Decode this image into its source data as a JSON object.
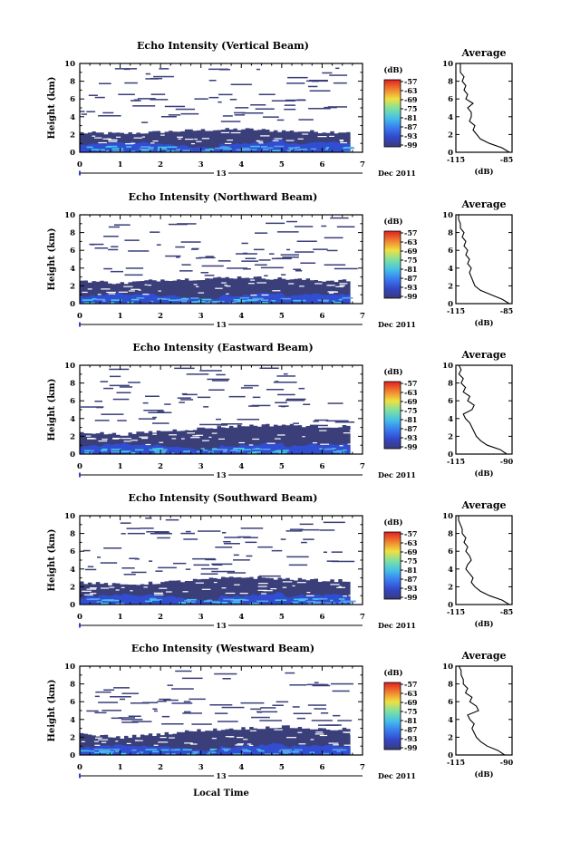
{
  "figure": {
    "x_axis_label": "Local Time",
    "date_label": "Dec 2011",
    "day_label": "13"
  },
  "colors": {
    "background": "#ffffff",
    "dark_navy": "#3a3f7a",
    "blue": "#3050e0",
    "cyan": "#40c8e8",
    "colormap": [
      "#3a3a78",
      "#3347c8",
      "#3a7cf0",
      "#45c0e8",
      "#80e0a0",
      "#f0e040",
      "#f08030",
      "#e02020"
    ]
  },
  "chart_data": [
    {
      "type": "heatmap",
      "title": "Echo Intensity (Vertical Beam)",
      "ylabel": "Height (km)",
      "xlim": [
        0,
        7
      ],
      "ylim": [
        0,
        10
      ],
      "xticks": [
        "0",
        "1",
        "2",
        "3",
        "4",
        "5",
        "6",
        "7"
      ],
      "yticks": [
        "0",
        "2",
        "4",
        "6",
        "8",
        "10"
      ],
      "colorbar": {
        "unit": "(dB)",
        "ticks": [
          "-57",
          "-63",
          "-69",
          "-75",
          "-81",
          "-87",
          "-93",
          "-99"
        ]
      },
      "layer_top_km": [
        [
          0,
          2.2
        ],
        [
          1,
          2.1
        ],
        [
          2,
          2.3
        ],
        [
          3,
          2.5
        ],
        [
          4,
          2.6
        ],
        [
          5,
          2.4
        ],
        [
          6,
          2.3
        ],
        [
          6.7,
          2.3
        ]
      ],
      "profile": {
        "title": "Average",
        "xlabel": "(dB)",
        "xticks": [
          "-115",
          "-85"
        ],
        "yticks": [
          "0",
          "2",
          "4",
          "6",
          "8",
          "10"
        ],
        "height_km": [
          0,
          0.5,
          1,
          1.5,
          2,
          2.5,
          3,
          3.5,
          4,
          4.5,
          5,
          5.5,
          6,
          6.5,
          7,
          7.5,
          8,
          8.5,
          9,
          9.5,
          10
        ],
        "value_db": [
          -86,
          -90,
          -97,
          -102,
          -104,
          -106,
          -105,
          -108,
          -107,
          -107,
          -109,
          -106,
          -110,
          -109,
          -111,
          -110,
          -112,
          -111,
          -113,
          -113,
          -113
        ]
      }
    },
    {
      "type": "heatmap",
      "title": "Echo Intensity (Northward Beam)",
      "ylabel": "Height (km)",
      "xlim": [
        0,
        7
      ],
      "ylim": [
        0,
        10
      ],
      "xticks": [
        "0",
        "1",
        "2",
        "3",
        "4",
        "5",
        "6",
        "7"
      ],
      "yticks": [
        "0",
        "2",
        "4",
        "6",
        "8",
        "10"
      ],
      "colorbar": {
        "unit": "(dB)",
        "ticks": [
          "-57",
          "-63",
          "-69",
          "-75",
          "-81",
          "-87",
          "-93",
          "-99"
        ]
      },
      "layer_top_km": [
        [
          0,
          2.6
        ],
        [
          1,
          2.3
        ],
        [
          2,
          2.7
        ],
        [
          3,
          2.8
        ],
        [
          4,
          3.0
        ],
        [
          5,
          2.8
        ],
        [
          6,
          2.6
        ],
        [
          6.7,
          2.6
        ]
      ],
      "profile": {
        "title": "Average",
        "xlabel": "(dB)",
        "xticks": [
          "-115",
          "-85"
        ],
        "yticks": [
          "0",
          "2",
          "4",
          "6",
          "8",
          "10"
        ],
        "height_km": [
          0,
          0.5,
          1,
          1.5,
          2,
          2.5,
          3,
          3.5,
          4,
          4.5,
          5,
          5.5,
          6,
          6.5,
          7,
          7.5,
          8,
          8.5,
          9,
          9.5,
          10
        ],
        "value_db": [
          -86,
          -90,
          -96,
          -102,
          -105,
          -106,
          -107,
          -108,
          -107,
          -109,
          -108,
          -110,
          -109,
          -111,
          -110,
          -112,
          -111,
          -113,
          -113,
          -114,
          -114
        ]
      }
    },
    {
      "type": "heatmap",
      "title": "Echo Intensity (Eastward Beam)",
      "ylabel": "Height (km)",
      "xlim": [
        0,
        7
      ],
      "ylim": [
        0,
        10
      ],
      "xticks": [
        "0",
        "1",
        "2",
        "3",
        "4",
        "5",
        "6",
        "7"
      ],
      "yticks": [
        "0",
        "2",
        "4",
        "6",
        "8",
        "10"
      ],
      "colorbar": {
        "unit": "(dB)",
        "ticks": [
          "-57",
          "-63",
          "-69",
          "-75",
          "-81",
          "-87",
          "-93",
          "-99"
        ]
      },
      "layer_top_km": [
        [
          0,
          2.5
        ],
        [
          1,
          2.2
        ],
        [
          2,
          2.6
        ],
        [
          3,
          2.9
        ],
        [
          4,
          3.2
        ],
        [
          5,
          3.3
        ],
        [
          6,
          3.1
        ],
        [
          6.7,
          3.1
        ]
      ],
      "profile": {
        "title": "Average",
        "xlabel": "(dB)",
        "xticks": [
          "-115",
          "-90"
        ],
        "yticks": [
          "0",
          "2",
          "4",
          "6",
          "8",
          "10"
        ],
        "height_km": [
          0,
          0.5,
          1,
          1.5,
          2,
          2.5,
          3,
          3.5,
          4,
          4.5,
          5,
          5.5,
          6,
          6.5,
          7,
          7.5,
          8,
          8.5,
          9,
          9.5,
          10
        ],
        "value_db": [
          -92,
          -95,
          -101,
          -104,
          -106,
          -107,
          -108,
          -109,
          -111,
          -112,
          -108,
          -107,
          -110,
          -109,
          -112,
          -111,
          -113,
          -112,
          -114,
          -113,
          -114
        ]
      }
    },
    {
      "type": "heatmap",
      "title": "Echo Intensity (Southward Beam)",
      "ylabel": "Height (km)",
      "xlim": [
        0,
        7
      ],
      "ylim": [
        0,
        10
      ],
      "xticks": [
        "0",
        "1",
        "2",
        "3",
        "4",
        "5",
        "6",
        "7"
      ],
      "yticks": [
        "0",
        "2",
        "4",
        "6",
        "8",
        "10"
      ],
      "colorbar": {
        "unit": "(dB)",
        "ticks": [
          "-57",
          "-63",
          "-69",
          "-75",
          "-81",
          "-87",
          "-93",
          "-99"
        ]
      },
      "layer_top_km": [
        [
          0,
          2.5
        ],
        [
          1,
          2.2
        ],
        [
          2,
          2.5
        ],
        [
          3,
          2.8
        ],
        [
          4,
          3.1
        ],
        [
          5,
          2.9
        ],
        [
          6,
          2.7
        ],
        [
          6.7,
          2.7
        ]
      ],
      "profile": {
        "title": "Average",
        "xlabel": "(dB)",
        "xticks": [
          "-115",
          "-85"
        ],
        "yticks": [
          "0",
          "2",
          "4",
          "6",
          "8",
          "10"
        ],
        "height_km": [
          0,
          0.5,
          1,
          1.5,
          2,
          2.5,
          3,
          3.5,
          4,
          4.5,
          5,
          5.5,
          6,
          6.5,
          7,
          7.5,
          8,
          8.5,
          9,
          9.5,
          10
        ],
        "value_db": [
          -86,
          -90,
          -97,
          -102,
          -105,
          -107,
          -106,
          -108,
          -110,
          -109,
          -107,
          -108,
          -110,
          -109,
          -111,
          -110,
          -112,
          -112,
          -113,
          -114,
          -114
        ]
      }
    },
    {
      "type": "heatmap",
      "title": "Echo Intensity (Westward Beam)",
      "ylabel": "Height (km)",
      "xlim": [
        0,
        7
      ],
      "ylim": [
        0,
        10
      ],
      "xticks": [
        "0",
        "1",
        "2",
        "3",
        "4",
        "5",
        "6",
        "7"
      ],
      "yticks": [
        "0",
        "2",
        "4",
        "6",
        "8",
        "10"
      ],
      "colorbar": {
        "unit": "(dB)",
        "ticks": [
          "-57",
          "-63",
          "-69",
          "-75",
          "-81",
          "-87",
          "-93",
          "-99"
        ]
      },
      "layer_top_km": [
        [
          0,
          2.3
        ],
        [
          1,
          2.0
        ],
        [
          2,
          2.4
        ],
        [
          3,
          2.8
        ],
        [
          4,
          3.0
        ],
        [
          5,
          3.2
        ],
        [
          6,
          2.9
        ],
        [
          6.7,
          2.9
        ]
      ],
      "profile": {
        "title": "Average",
        "xlabel": "(dB)",
        "xticks": [
          "-115",
          "-90"
        ],
        "yticks": [
          "0",
          "2",
          "4",
          "6",
          "8",
          "10"
        ],
        "height_km": [
          0,
          0.5,
          1,
          1.5,
          2,
          2.5,
          3,
          3.5,
          4,
          4.5,
          5,
          5.5,
          6,
          6.5,
          7,
          7.5,
          8,
          8.5,
          9,
          9.5,
          10
        ],
        "value_db": [
          -93,
          -96,
          -101,
          -104,
          -106,
          -107,
          -108,
          -107,
          -109,
          -110,
          -105,
          -106,
          -109,
          -108,
          -111,
          -110,
          -112,
          -112,
          -113,
          -113,
          -114
        ]
      }
    }
  ]
}
